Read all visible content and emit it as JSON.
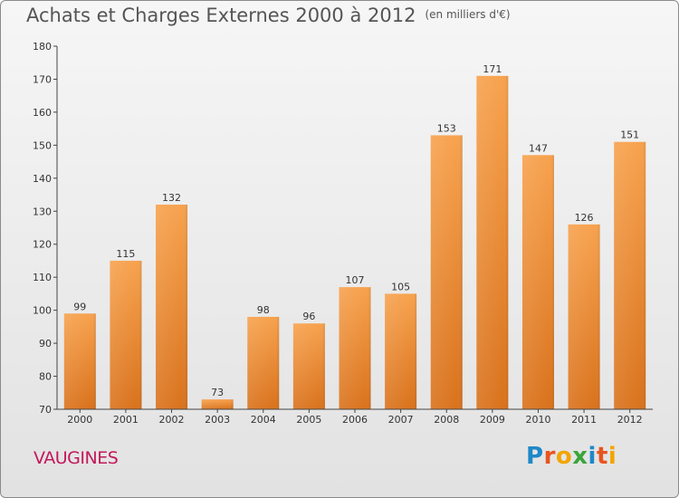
{
  "header": {
    "title": "Achats et Charges Externes 2000 à 2012",
    "unit": "(en milliers d'€)"
  },
  "footer": {
    "town": "VAUGINES",
    "logo_letters": [
      "P",
      "r",
      "o",
      "x",
      "i",
      "t",
      "i"
    ],
    "logo_colors": [
      "#1e88c8",
      "#e8541e",
      "#f2a500",
      "#3aa53a",
      "#1e88c8",
      "#e8541e",
      "#f2a500"
    ]
  },
  "colors": {
    "bar_top": "#f7a24e",
    "bar_bottom": "#d9721c",
    "title": "#555555",
    "town": "#c2185b"
  },
  "chart_data": {
    "type": "bar",
    "title": "Achats et Charges Externes 2000 à 2012",
    "subtitle": "(en milliers d'€)",
    "xlabel": "",
    "ylabel": "",
    "categories": [
      "2000",
      "2001",
      "2002",
      "2003",
      "2004",
      "2005",
      "2006",
      "2007",
      "2008",
      "2009",
      "2010",
      "2011",
      "2012"
    ],
    "values": [
      99,
      115,
      132,
      73,
      98,
      96,
      107,
      105,
      153,
      171,
      147,
      126,
      151
    ],
    "ylim": [
      70,
      180
    ],
    "yticks": [
      70,
      80,
      90,
      100,
      110,
      120,
      130,
      140,
      150,
      160,
      170,
      180
    ],
    "grid": false
  }
}
